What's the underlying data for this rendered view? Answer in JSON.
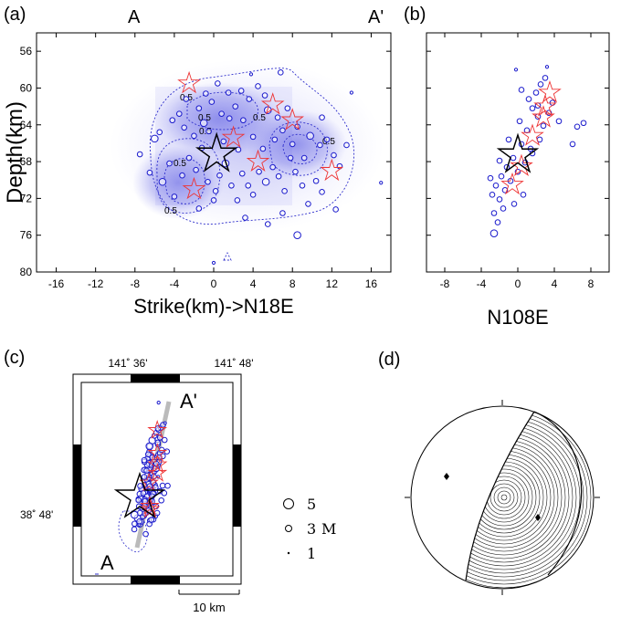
{
  "panels": {
    "a": {
      "label": "(a)",
      "left_marker": "A",
      "right_marker": "A'"
    },
    "b": {
      "label": "(b)"
    },
    "c": {
      "label": "(c)",
      "marker_a": "A",
      "marker_a_prime": "A'",
      "lon_ticks": [
        "141˚ 36'",
        "141˚ 48'"
      ],
      "lat_tick": "38˚ 48'",
      "scale_label": "10 km"
    },
    "d": {
      "label": "(d)"
    }
  },
  "magnitude_legend": {
    "suffix": "M",
    "entries": [
      {
        "value": "5"
      },
      {
        "value": "3"
      },
      {
        "value": "1"
      }
    ]
  },
  "colors": {
    "hypocenter": "#1a1acc",
    "star": "#ee3333",
    "mainshock": "#000000",
    "density": "#5050e0"
  },
  "chart_data": [
    {
      "type": "scatter",
      "panel": "(a)",
      "xlabel": "Strike(km)->N18E",
      "ylabel": "Depth(km)",
      "xlim": [
        -18,
        18
      ],
      "ylim": [
        80,
        54
      ],
      "xticks": [
        "-16",
        "-12",
        "-8",
        "-4",
        "0",
        "4",
        "8",
        "12",
        "16"
      ],
      "yticks": [
        "56",
        "60",
        "64",
        "68",
        "72",
        "76",
        "80"
      ],
      "contour_level_labels": [
        "0.5",
        "0.5",
        "0.5",
        "0.5",
        "0.5",
        "0.5",
        "0.5"
      ],
      "mainshock": {
        "x": 0.3,
        "y": 67.2
      },
      "stars": [
        {
          "x": -2.5,
          "y": 59.5
        },
        {
          "x": 6,
          "y": 61.8
        },
        {
          "x": 8,
          "y": 63.5
        },
        {
          "x": 2,
          "y": 65.4
        },
        {
          "x": 12,
          "y": 69
        },
        {
          "x": -2,
          "y": 71
        },
        {
          "x": 4.5,
          "y": 68
        }
      ],
      "hypocenter_density_note": "",
      "events": [
        {
          "x": -6,
          "y": 65.5,
          "m": 3
        },
        {
          "x": -5.5,
          "y": 64.8,
          "m": 2
        },
        {
          "x": -4.2,
          "y": 63.5,
          "m": 2
        },
        {
          "x": -3.5,
          "y": 62.8,
          "m": 2
        },
        {
          "x": -2.8,
          "y": 61.2,
          "m": 2
        },
        {
          "x": -1.5,
          "y": 62.2,
          "m": 2
        },
        {
          "x": -1,
          "y": 63.8,
          "m": 3
        },
        {
          "x": -0.2,
          "y": 61.5,
          "m": 2
        },
        {
          "x": 0.8,
          "y": 62.8,
          "m": 2
        },
        {
          "x": 1.5,
          "y": 60.5,
          "m": 2
        },
        {
          "x": 2.2,
          "y": 62,
          "m": 2
        },
        {
          "x": 3,
          "y": 63.5,
          "m": 2
        },
        {
          "x": 3.6,
          "y": 61.2,
          "m": 2
        },
        {
          "x": 4.5,
          "y": 59.8,
          "m": 2
        },
        {
          "x": 5.2,
          "y": 60.8,
          "m": 2
        },
        {
          "x": 5.5,
          "y": 62.4,
          "m": 3
        },
        {
          "x": 6.5,
          "y": 63.2,
          "m": 2
        },
        {
          "x": 7.5,
          "y": 62.2,
          "m": 2
        },
        {
          "x": 8.5,
          "y": 64.2,
          "m": 2
        },
        {
          "x": 9.8,
          "y": 65.2,
          "m": 3
        },
        {
          "x": 10.8,
          "y": 66.2,
          "m": 2
        },
        {
          "x": 11.5,
          "y": 65.6,
          "m": 2
        },
        {
          "x": 12.2,
          "y": 67.3,
          "m": 2
        },
        {
          "x": 12.8,
          "y": 68.5,
          "m": 2
        },
        {
          "x": 13.5,
          "y": 66.2,
          "m": 2
        },
        {
          "x": 14,
          "y": 60.5,
          "m": 1
        },
        {
          "x": 17,
          "y": 70.3,
          "m": 1
        },
        {
          "x": -7.5,
          "y": 67.2,
          "m": 2
        },
        {
          "x": -6.5,
          "y": 69.2,
          "m": 2
        },
        {
          "x": -5.2,
          "y": 70.2,
          "m": 3
        },
        {
          "x": -4.5,
          "y": 68.2,
          "m": 2
        },
        {
          "x": -4,
          "y": 71.8,
          "m": 2
        },
        {
          "x": -3.2,
          "y": 69.5,
          "m": 2
        },
        {
          "x": -2.5,
          "y": 67.6,
          "m": 2
        },
        {
          "x": -1.8,
          "y": 68.9,
          "m": 2
        },
        {
          "x": -1.2,
          "y": 66.5,
          "m": 2
        },
        {
          "x": -0.6,
          "y": 70.2,
          "m": 2
        },
        {
          "x": 0.2,
          "y": 71.2,
          "m": 2
        },
        {
          "x": 0.6,
          "y": 69.5,
          "m": 2
        },
        {
          "x": 1.2,
          "y": 68.2,
          "m": 3
        },
        {
          "x": 1.8,
          "y": 70.6,
          "m": 2
        },
        {
          "x": 2.4,
          "y": 72.2,
          "m": 2
        },
        {
          "x": 2.9,
          "y": 69.3,
          "m": 2
        },
        {
          "x": 3.5,
          "y": 70.6,
          "m": 2
        },
        {
          "x": 4,
          "y": 71.6,
          "m": 2
        },
        {
          "x": 4.6,
          "y": 69.1,
          "m": 2
        },
        {
          "x": 5.3,
          "y": 70.2,
          "m": 3
        },
        {
          "x": 6,
          "y": 68.6,
          "m": 2
        },
        {
          "x": 6.6,
          "y": 69.6,
          "m": 2
        },
        {
          "x": 7.2,
          "y": 71.2,
          "m": 2
        },
        {
          "x": 7.8,
          "y": 67.6,
          "m": 2
        },
        {
          "x": 8.3,
          "y": 69.1,
          "m": 2
        },
        {
          "x": 9,
          "y": 70.6,
          "m": 2
        },
        {
          "x": 9.6,
          "y": 72.6,
          "m": 2
        },
        {
          "x": 10.4,
          "y": 70.1,
          "m": 2
        },
        {
          "x": 11,
          "y": 71.3,
          "m": 2
        },
        {
          "x": 12.4,
          "y": 73.2,
          "m": 2
        },
        {
          "x": 3.2,
          "y": 74.1,
          "m": 2
        },
        {
          "x": 5.5,
          "y": 74.8,
          "m": 2
        },
        {
          "x": 7,
          "y": 73.6,
          "m": 2
        },
        {
          "x": 8.5,
          "y": 76,
          "m": 3
        },
        {
          "x": -1.5,
          "y": 73.1,
          "m": 2
        },
        {
          "x": 0,
          "y": 72.2,
          "m": 2
        },
        {
          "x": -3,
          "y": 64.3,
          "m": 2
        },
        {
          "x": -2,
          "y": 65.2,
          "m": 2
        },
        {
          "x": -0.5,
          "y": 64.7,
          "m": 2
        },
        {
          "x": 1,
          "y": 65.8,
          "m": 2
        },
        {
          "x": 2.5,
          "y": 66.7,
          "m": 2
        },
        {
          "x": 4,
          "y": 65.3,
          "m": 2
        },
        {
          "x": 5,
          "y": 66.6,
          "m": 2
        },
        {
          "x": 6.2,
          "y": 65.6,
          "m": 2
        },
        {
          "x": 7,
          "y": 64.6,
          "m": 2
        },
        {
          "x": 8,
          "y": 66.1,
          "m": 2
        },
        {
          "x": 9.2,
          "y": 67.6,
          "m": 2
        },
        {
          "x": 1.6,
          "y": 63.3,
          "m": 2
        },
        {
          "x": 2.8,
          "y": 60.3,
          "m": 2
        },
        {
          "x": -0.8,
          "y": 60.6,
          "m": 2
        },
        {
          "x": 0.4,
          "y": 59.5,
          "m": 2
        },
        {
          "x": 3.8,
          "y": 58.5,
          "m": 1
        },
        {
          "x": 6.8,
          "y": 58.3,
          "m": 2
        },
        {
          "x": 11,
          "y": 63.2,
          "m": 2
        },
        {
          "x": 0,
          "y": 79,
          "m": 1
        }
      ]
    },
    {
      "type": "scatter",
      "panel": "(b)",
      "xlabel": "N108E",
      "ylabel": "",
      "xlim": [
        -10,
        10
      ],
      "ylim": [
        80,
        54
      ],
      "xticks": [
        "-8",
        "-4",
        "0",
        "4",
        "8"
      ],
      "mainshock": {
        "x": 0,
        "y": 67.3
      },
      "stars": [
        {
          "x": 3.5,
          "y": 60.5
        },
        {
          "x": 2.8,
          "y": 63.2
        },
        {
          "x": 1.6,
          "y": 65.2
        },
        {
          "x": 0.4,
          "y": 68.5
        },
        {
          "x": -0.6,
          "y": 70.5
        },
        {
          "x": 3,
          "y": 62
        }
      ],
      "events": [
        {
          "x": -0.2,
          "y": 58,
          "m": 1
        },
        {
          "x": 0.4,
          "y": 60.2,
          "m": 2
        },
        {
          "x": 1.2,
          "y": 61.2,
          "m": 2
        },
        {
          "x": 2,
          "y": 60.5,
          "m": 2
        },
        {
          "x": 2.5,
          "y": 59.6,
          "m": 2
        },
        {
          "x": 3,
          "y": 58.9,
          "m": 2
        },
        {
          "x": 3.2,
          "y": 57.7,
          "m": 1
        },
        {
          "x": 1.6,
          "y": 62.2,
          "m": 2
        },
        {
          "x": 2.2,
          "y": 63.1,
          "m": 2
        },
        {
          "x": 2.8,
          "y": 64.1,
          "m": 2
        },
        {
          "x": 3.4,
          "y": 62.7,
          "m": 2
        },
        {
          "x": 1,
          "y": 64.6,
          "m": 2
        },
        {
          "x": 0.4,
          "y": 66.1,
          "m": 2
        },
        {
          "x": 1.4,
          "y": 66.6,
          "m": 2
        },
        {
          "x": -0.5,
          "y": 67.6,
          "m": 2
        },
        {
          "x": -1.2,
          "y": 68.6,
          "m": 2
        },
        {
          "x": -1.8,
          "y": 69.6,
          "m": 2
        },
        {
          "x": -2.4,
          "y": 70.6,
          "m": 2
        },
        {
          "x": -2.8,
          "y": 71.6,
          "m": 2
        },
        {
          "x": -2,
          "y": 72.1,
          "m": 2
        },
        {
          "x": -1.4,
          "y": 71.1,
          "m": 2
        },
        {
          "x": -0.8,
          "y": 70.1,
          "m": 2
        },
        {
          "x": 0,
          "y": 69.1,
          "m": 2
        },
        {
          "x": 0.8,
          "y": 68.1,
          "m": 2
        },
        {
          "x": 1.6,
          "y": 67.1,
          "m": 2
        },
        {
          "x": 2.4,
          "y": 65.6,
          "m": 2
        },
        {
          "x": -2.6,
          "y": 73.6,
          "m": 2
        },
        {
          "x": -2.2,
          "y": 74.6,
          "m": 2
        },
        {
          "x": -2.6,
          "y": 75.8,
          "m": 3
        },
        {
          "x": -1.6,
          "y": 73.1,
          "m": 2
        },
        {
          "x": 4.5,
          "y": 63.6,
          "m": 2
        },
        {
          "x": 6,
          "y": 66.1,
          "m": 2
        },
        {
          "x": 6.5,
          "y": 64.2,
          "m": 2
        },
        {
          "x": 7.2,
          "y": 63.8,
          "m": 2
        },
        {
          "x": -3,
          "y": 69.8,
          "m": 2
        },
        {
          "x": -2,
          "y": 67.9,
          "m": 2
        },
        {
          "x": 0.6,
          "y": 71.6,
          "m": 2
        },
        {
          "x": -0.4,
          "y": 72.6,
          "m": 2
        },
        {
          "x": 3.8,
          "y": 61.6,
          "m": 2
        },
        {
          "x": 2.2,
          "y": 61.9,
          "m": 2
        },
        {
          "x": 0.2,
          "y": 63.6,
          "m": 2
        },
        {
          "x": -1,
          "y": 65.6,
          "m": 2
        }
      ]
    }
  ]
}
